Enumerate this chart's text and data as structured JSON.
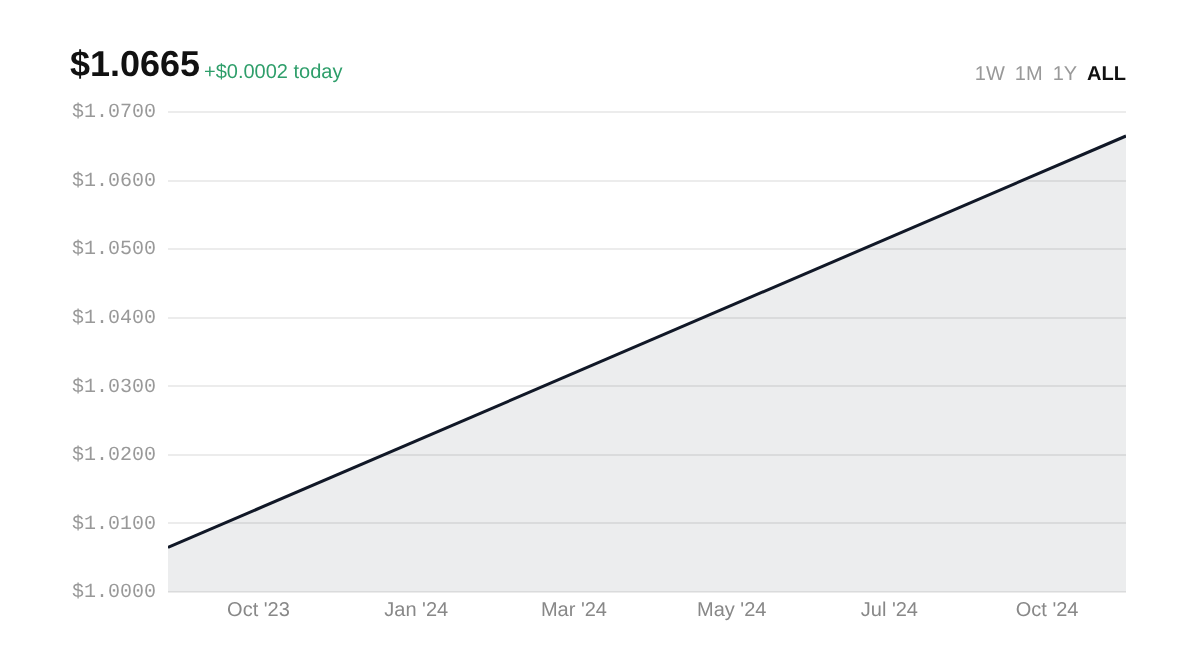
{
  "chart_data": {
    "type": "area",
    "title": "$1.0665",
    "subtitle": "+$0.0002 today",
    "annotations": [
      "1W",
      "1M",
      "1Y",
      "ALL"
    ],
    "x": [
      "2023-09-22",
      "2024-11-08"
    ],
    "series": [
      {
        "color": "#111827",
        "values": [
          1.0065,
          1.0665
        ]
      }
    ],
    "xlim": [
      "2023-09-22",
      "2024-11-08"
    ],
    "xticks": [
      {
        "value": "2023-10-31",
        "label": "Oct '23"
      },
      {
        "value": "2024-01-07",
        "label": "Jan '24"
      },
      {
        "value": "2024-03-15",
        "label": "Mar '24"
      },
      {
        "value": "2024-05-22",
        "label": "May '24"
      },
      {
        "value": "2024-07-29",
        "label": "Jul '24"
      },
      {
        "value": "2024-10-05",
        "label": "Oct '24"
      }
    ],
    "ylim": [
      1.0,
      1.07
    ],
    "yticks": [
      {
        "value": 1.0,
        "label": "$1.0000"
      },
      {
        "value": 1.01,
        "label": "$1.0100"
      },
      {
        "value": 1.02,
        "label": "$1.0200"
      },
      {
        "value": 1.03,
        "label": "$1.0300"
      },
      {
        "value": 1.04,
        "label": "$1.0400"
      },
      {
        "value": 1.05,
        "label": "$1.0500"
      },
      {
        "value": 1.06,
        "label": "$1.0600"
      },
      {
        "value": 1.07,
        "label": "$1.0700"
      }
    ],
    "grid": "y",
    "legend": false
  }
}
